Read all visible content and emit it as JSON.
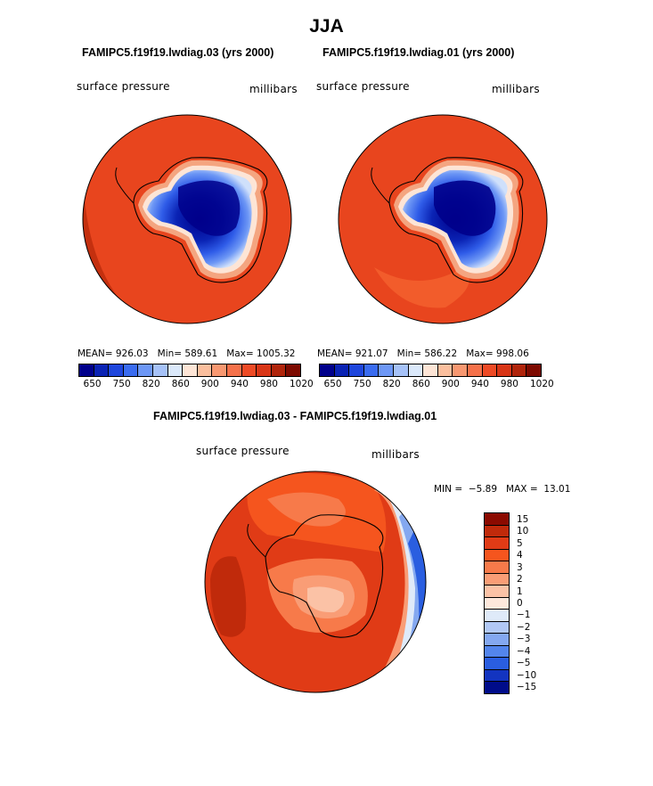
{
  "page": {
    "title": "JJA",
    "panel_left": {
      "case": "FAMIPC5.f19f19.lwdiag.03 (yrs 2000)",
      "variable": "surface pressure",
      "units": "millibars",
      "mean_label": "MEAN=",
      "mean": "926.03",
      "min_label": "Min=",
      "min": "589.61",
      "max_label": "Max=",
      "max": "1005.32"
    },
    "panel_right": {
      "case": "FAMIPC5.f19f19.lwdiag.01 (yrs 2000)",
      "variable": "surface pressure",
      "units": "millibars",
      "mean_label": "MEAN=",
      "mean": "921.07",
      "min_label": "Min=",
      "min": "586.22",
      "max_label": "Max=",
      "max": "998.06"
    },
    "diff_panel": {
      "title": "FAMIPC5.f19f19.lwdiag.03 - FAMIPC5.f19f19.lwdiag.01",
      "variable": "surface pressure",
      "units": "millibars",
      "min_label": "MIN =",
      "min": "−5.89",
      "max_label": "MAX =",
      "max": "13.01"
    }
  },
  "colorbars": {
    "absolute": {
      "tick_labels": [
        "650",
        "750",
        "820",
        "860",
        "900",
        "940",
        "980",
        "1020"
      ],
      "colors": [
        "#00008b",
        "#0a23b4",
        "#1e46dc",
        "#3a6cf0",
        "#6d97f5",
        "#a6c2f8",
        "#dbe9fb",
        "#fde5d6",
        "#fbbf9e",
        "#f89871",
        "#f5714a",
        "#ee4a25",
        "#d83516",
        "#b0240b",
        "#7d0a00"
      ]
    },
    "difference": {
      "labels": [
        "15",
        "10",
        "5",
        "4",
        "3",
        "2",
        "1",
        "0",
        "−1",
        "−2",
        "−3",
        "−4",
        "−5",
        "−10",
        "−15"
      ],
      "colors": [
        "#8b0a00",
        "#c02a0b",
        "#e03b16",
        "#f5551e",
        "#f77a4a",
        "#f99d76",
        "#fbc2a6",
        "#fde8dc",
        "#dfeaf9",
        "#b1c8f5",
        "#84a8f0",
        "#5385ec",
        "#2a5ee0",
        "#1334c0",
        "#000c8a"
      ]
    }
  },
  "chart_data": [
    {
      "type": "heatmap",
      "title": "FAMIPC5.f19f19.lwdiag.03 (yrs 2000)",
      "variable": "surface pressure",
      "units": "millibars",
      "projection": "south polar stereographic",
      "mean": 926.03,
      "min": 589.61,
      "max": 1005.32,
      "contour_levels": [
        650,
        700,
        750,
        800,
        820,
        840,
        860,
        880,
        900,
        920,
        940,
        960,
        980,
        1000,
        1020
      ]
    },
    {
      "type": "heatmap",
      "title": "FAMIPC5.f19f19.lwdiag.01 (yrs 2000)",
      "variable": "surface pressure",
      "units": "millibars",
      "projection": "south polar stereographic",
      "mean": 921.07,
      "min": 586.22,
      "max": 998.06,
      "contour_levels": [
        650,
        700,
        750,
        800,
        820,
        840,
        860,
        880,
        900,
        920,
        940,
        960,
        980,
        1000,
        1020
      ]
    },
    {
      "type": "heatmap",
      "title": "FAMIPC5.f19f19.lwdiag.03 - FAMIPC5.f19f19.lwdiag.01",
      "variable": "surface pressure",
      "units": "millibars",
      "projection": "south polar stereographic",
      "min": -5.89,
      "max": 13.01,
      "contour_levels": [
        -15,
        -10,
        -5,
        -4,
        -3,
        -2,
        -1,
        0,
        1,
        2,
        3,
        4,
        5,
        10,
        15
      ]
    }
  ]
}
